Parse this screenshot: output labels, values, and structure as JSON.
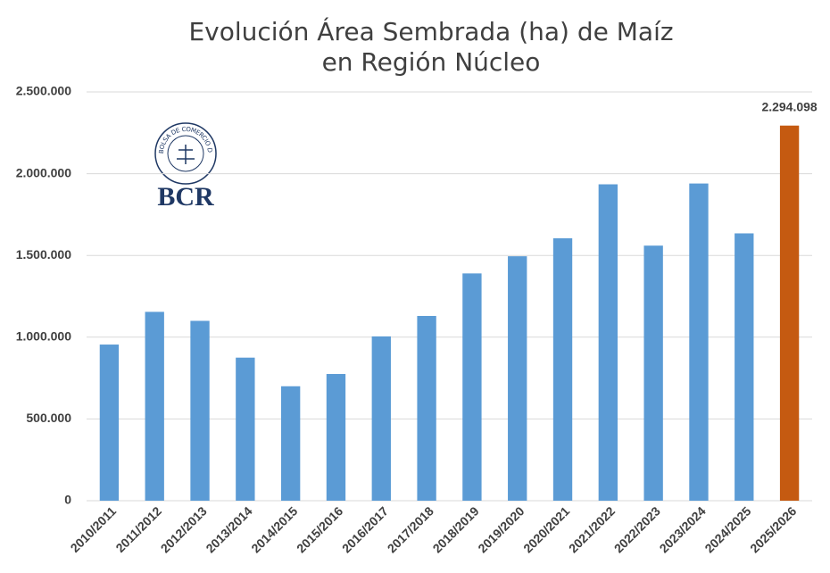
{
  "chart_data": {
    "type": "bar",
    "title": [
      "Evolución Área Sembrada (ha) de Maíz",
      "en Región Núcleo"
    ],
    "categories": [
      "2010/2011",
      "2011/2012",
      "2012/2013",
      "2013/2014",
      "2014/2015",
      "2015/2016",
      "2016/2017",
      "2017/2018",
      "2018/2019",
      "2019/2020",
      "2020/2021",
      "2021/2022",
      "2022/2023",
      "2023/2024",
      "2024/2025",
      "2025/2026"
    ],
    "values": [
      955000,
      1155000,
      1100000,
      875000,
      700000,
      775000,
      1005000,
      1130000,
      1390000,
      1495000,
      1605000,
      1935000,
      1560000,
      1940000,
      1635000,
      2294098
    ],
    "value_labels": [
      null,
      null,
      null,
      null,
      null,
      null,
      null,
      null,
      null,
      null,
      null,
      null,
      null,
      null,
      null,
      "2.294.098"
    ],
    "colors": [
      "#5b9bd5",
      "#5b9bd5",
      "#5b9bd5",
      "#5b9bd5",
      "#5b9bd5",
      "#5b9bd5",
      "#5b9bd5",
      "#5b9bd5",
      "#5b9bd5",
      "#5b9bd5",
      "#5b9bd5",
      "#5b9bd5",
      "#5b9bd5",
      "#5b9bd5",
      "#5b9bd5",
      "#c55a11"
    ],
    "ylim": [
      0,
      2500000
    ],
    "yticks": [
      0,
      {
        "value": 500000,
        "label": "500.000"
      },
      {
        "value": 1000000,
        "label": "1.000.000"
      },
      {
        "value": 1500000,
        "label": "1.500.000"
      },
      {
        "value": 2000000,
        "label": "2.000.000"
      },
      {
        "value": 2500000,
        "label": "2.500.000"
      }
    ],
    "grid": true
  },
  "logo": {
    "text": "BCR",
    "ring_text": "BOLSA DE COMERCIO DE ROSARIO"
  }
}
